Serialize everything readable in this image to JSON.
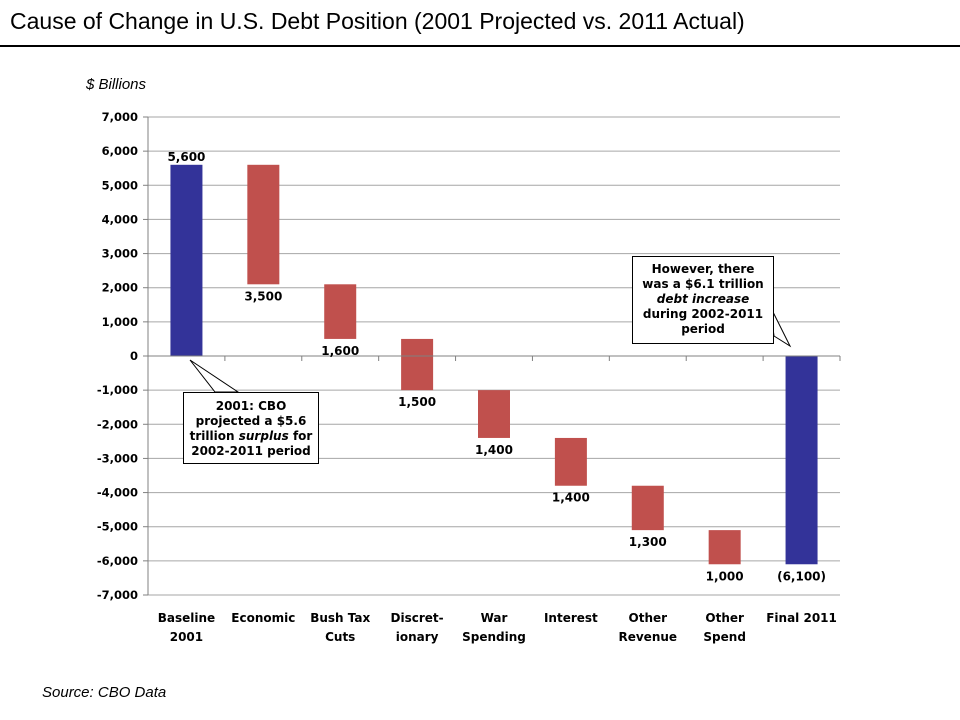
{
  "title": "Cause of Change in U.S. Debt Position (2001 Projected vs. 2011 Actual)",
  "unit_label": "$ Billions",
  "source": "Source: CBO Data",
  "colors": {
    "total_bar": "#333399",
    "change_bar": "#C0504D",
    "gridline": "#A6A6A6",
    "axis": "#808080"
  },
  "callouts": {
    "left": {
      "line1": "2001: CBO",
      "line2": "projected a $5.6",
      "line3_prefix": "trillion",
      "line3_emphasis": "surplus",
      "line3_suffix": "for",
      "line4": "2002-2011 period"
    },
    "right": {
      "line1": "However, there",
      "line2": "was a $6.1 trillion",
      "line3_emphasis": "debt increase",
      "line4": "during 2002-2011",
      "line5": "period"
    }
  },
  "chart_data": {
    "type": "bar",
    "subtype": "waterfall",
    "categories": [
      [
        "Baseline",
        "2001"
      ],
      [
        "Economic"
      ],
      [
        "Bush Tax",
        "Cuts"
      ],
      [
        "Discret-",
        "ionary"
      ],
      [
        "War",
        "Spending"
      ],
      [
        "Interest"
      ],
      [
        "Other",
        "Revenue"
      ],
      [
        "Other",
        "Spend"
      ],
      [
        "Final 2011"
      ]
    ],
    "bars": [
      {
        "kind": "total",
        "start": 0,
        "end": 5600,
        "label": "5,600"
      },
      {
        "kind": "change",
        "start": 5600,
        "end": 2100,
        "label": "3,500"
      },
      {
        "kind": "change",
        "start": 2100,
        "end": 500,
        "label": "1,600"
      },
      {
        "kind": "change",
        "start": 500,
        "end": -1000,
        "label": "1,500"
      },
      {
        "kind": "change",
        "start": -1000,
        "end": -2400,
        "label": "1,400"
      },
      {
        "kind": "change",
        "start": -2400,
        "end": -3800,
        "label": "1,400"
      },
      {
        "kind": "change",
        "start": -3800,
        "end": -5100,
        "label": "1,300"
      },
      {
        "kind": "change",
        "start": -5100,
        "end": -6100,
        "label": "1,000"
      },
      {
        "kind": "total",
        "start": 0,
        "end": -6100,
        "label": "(6,100)"
      }
    ],
    "ylim": [
      -7000,
      7000
    ],
    "yticks": [
      7000,
      6000,
      5000,
      4000,
      3000,
      2000,
      1000,
      0,
      -1000,
      -2000,
      -3000,
      -4000,
      -5000,
      -6000,
      -7000
    ],
    "ytick_labels": [
      "7,000",
      "6,000",
      "5,000",
      "4,000",
      "3,000",
      "2,000",
      "1,000",
      "0",
      "-1,000",
      "-2,000",
      "-3,000",
      "-4,000",
      "-5,000",
      "-6,000",
      "-7,000"
    ],
    "ylabel": "$ Billions",
    "xlabel": "",
    "grid": true,
    "legend": "none"
  }
}
